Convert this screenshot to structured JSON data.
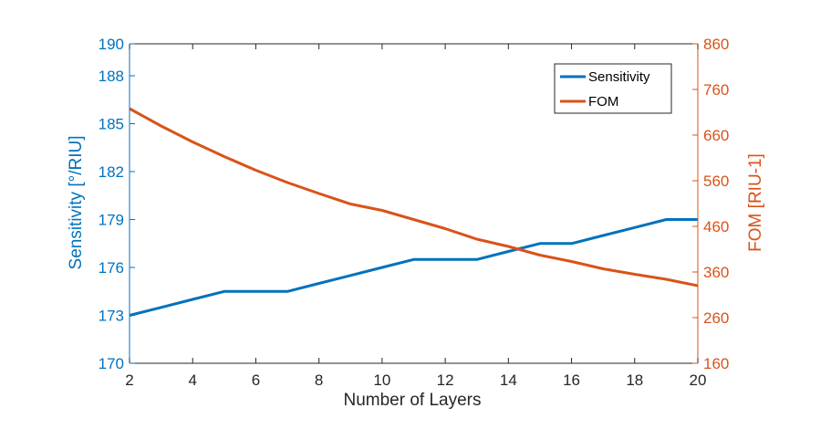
{
  "chart_data": {
    "type": "line",
    "xlabel": "Number of Layers",
    "x_ticks": [
      "2",
      "4",
      "6",
      "8",
      "10",
      "12",
      "14",
      "16",
      "18",
      "20"
    ],
    "xlim": [
      2,
      20
    ],
    "left_axis": {
      "label": "Sensitivity [°/RIU]",
      "color": "#0072BD",
      "ylim": [
        170,
        190
      ],
      "ticks": [
        "170",
        "173",
        "176",
        "179",
        "182",
        "185",
        "188",
        "190"
      ]
    },
    "right_axis": {
      "label": "FOM [RIU-1]",
      "color": "#D95319",
      "ylim": [
        160,
        860
      ],
      "ticks": [
        "160",
        "260",
        "360",
        "460",
        "560",
        "660",
        "760",
        "860"
      ]
    },
    "x": [
      2,
      3,
      4,
      5,
      6,
      7,
      8,
      9,
      10,
      11,
      12,
      13,
      14,
      15,
      16,
      17,
      18,
      19,
      20
    ],
    "series": [
      {
        "name": "Sensitivity",
        "axis": "left",
        "color": "#0072BD",
        "values": [
          173,
          173.5,
          174,
          174.5,
          174.5,
          174.5,
          175,
          175.5,
          176,
          176.5,
          176.5,
          176.5,
          177,
          177.5,
          177.5,
          178,
          178.5,
          179,
          179
        ]
      },
      {
        "name": "FOM",
        "axis": "right",
        "color": "#D95319",
        "values": [
          718,
          680,
          645,
          613,
          583,
          556,
          532,
          509,
          495,
          475,
          455,
          432,
          416,
          397,
          383,
          367,
          355,
          344,
          330
        ]
      }
    ],
    "legend": {
      "position": "top-right"
    },
    "grid": false
  }
}
